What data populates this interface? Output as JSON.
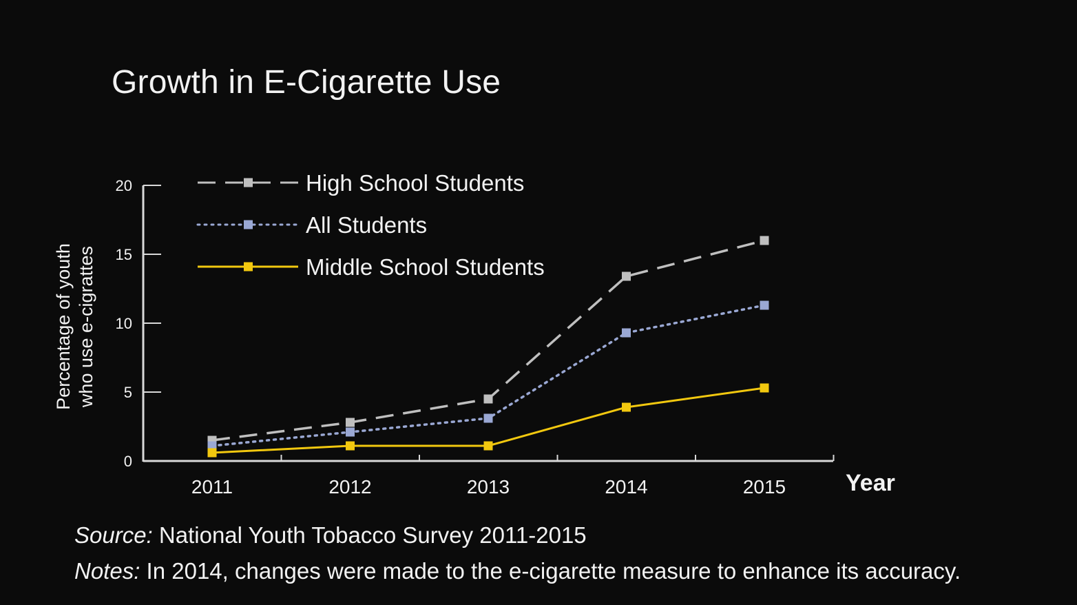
{
  "chart_data": {
    "type": "line",
    "title": "Growth in E-Cigarette Use",
    "xlabel": "Year",
    "ylabel_lines": [
      "Percentage of youth",
      "who use e-cigrattes"
    ],
    "categories": [
      "2011",
      "2012",
      "2013",
      "2014",
      "2015"
    ],
    "yticks": [
      "0",
      "5",
      "10",
      "15",
      "20"
    ],
    "ylim": [
      0,
      20
    ],
    "grid": false,
    "legend_position": "top-left",
    "series": [
      {
        "name": "High School Students",
        "values": [
          1.5,
          2.8,
          4.5,
          13.4,
          16.0
        ],
        "color": "#bfbfbf",
        "dash": "dashed",
        "marker": "square"
      },
      {
        "name": "All Students",
        "values": [
          1.1,
          2.1,
          3.1,
          9.3,
          11.3
        ],
        "color": "#9aa8d4",
        "dash": "dotted",
        "marker": "square"
      },
      {
        "name": "Middle School Students",
        "values": [
          0.6,
          1.1,
          1.1,
          3.9,
          5.3
        ],
        "color": "#f2c80f",
        "dash": "solid",
        "marker": "square"
      }
    ]
  },
  "footer": {
    "source_lead": "Source:",
    "source_text": " National Youth Tobacco Survey 2011-2015",
    "notes_lead": "Notes:",
    "notes_text": " In 2014, changes were made to the e-cigarette measure to enhance its accuracy."
  },
  "colors": {
    "background": "#0b0b0b",
    "axis": "#d9d9d9",
    "text": "#f2f2f2"
  }
}
